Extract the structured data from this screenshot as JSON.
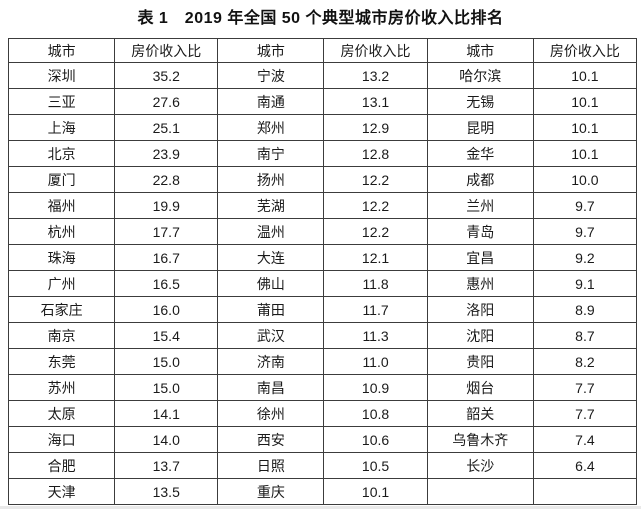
{
  "title": "表 1　2019 年全国 50 个典型城市房价收入比排名",
  "table": {
    "headers": [
      "城市",
      "房价收入比",
      "城市",
      "房价收入比",
      "城市",
      "房价收入比"
    ],
    "rows": [
      [
        "深圳",
        "35.2",
        "宁波",
        "13.2",
        "哈尔滨",
        "10.1"
      ],
      [
        "三亚",
        "27.6",
        "南通",
        "13.1",
        "无锡",
        "10.1"
      ],
      [
        "上海",
        "25.1",
        "郑州",
        "12.9",
        "昆明",
        "10.1"
      ],
      [
        "北京",
        "23.9",
        "南宁",
        "12.8",
        "金华",
        "10.1"
      ],
      [
        "厦门",
        "22.8",
        "扬州",
        "12.2",
        "成都",
        "10.0"
      ],
      [
        "福州",
        "19.9",
        "芜湖",
        "12.2",
        "兰州",
        "9.7"
      ],
      [
        "杭州",
        "17.7",
        "温州",
        "12.2",
        "青岛",
        "9.7"
      ],
      [
        "珠海",
        "16.7",
        "大连",
        "12.1",
        "宜昌",
        "9.2"
      ],
      [
        "广州",
        "16.5",
        "佛山",
        "11.8",
        "惠州",
        "9.1"
      ],
      [
        "石家庄",
        "16.0",
        "莆田",
        "11.7",
        "洛阳",
        "8.9"
      ],
      [
        "南京",
        "15.4",
        "武汉",
        "11.3",
        "沈阳",
        "8.7"
      ],
      [
        "东莞",
        "15.0",
        "济南",
        "11.0",
        "贵阳",
        "8.2"
      ],
      [
        "苏州",
        "15.0",
        "南昌",
        "10.9",
        "烟台",
        "7.7"
      ],
      [
        "太原",
        "14.1",
        "徐州",
        "10.8",
        "韶关",
        "7.7"
      ],
      [
        "海口",
        "14.0",
        "西安",
        "10.6",
        "乌鲁木齐",
        "7.4"
      ],
      [
        "合肥",
        "13.7",
        "日照",
        "10.5",
        "长沙",
        "6.4"
      ],
      [
        "天津",
        "13.5",
        "重庆",
        "10.1",
        "",
        ""
      ]
    ]
  }
}
